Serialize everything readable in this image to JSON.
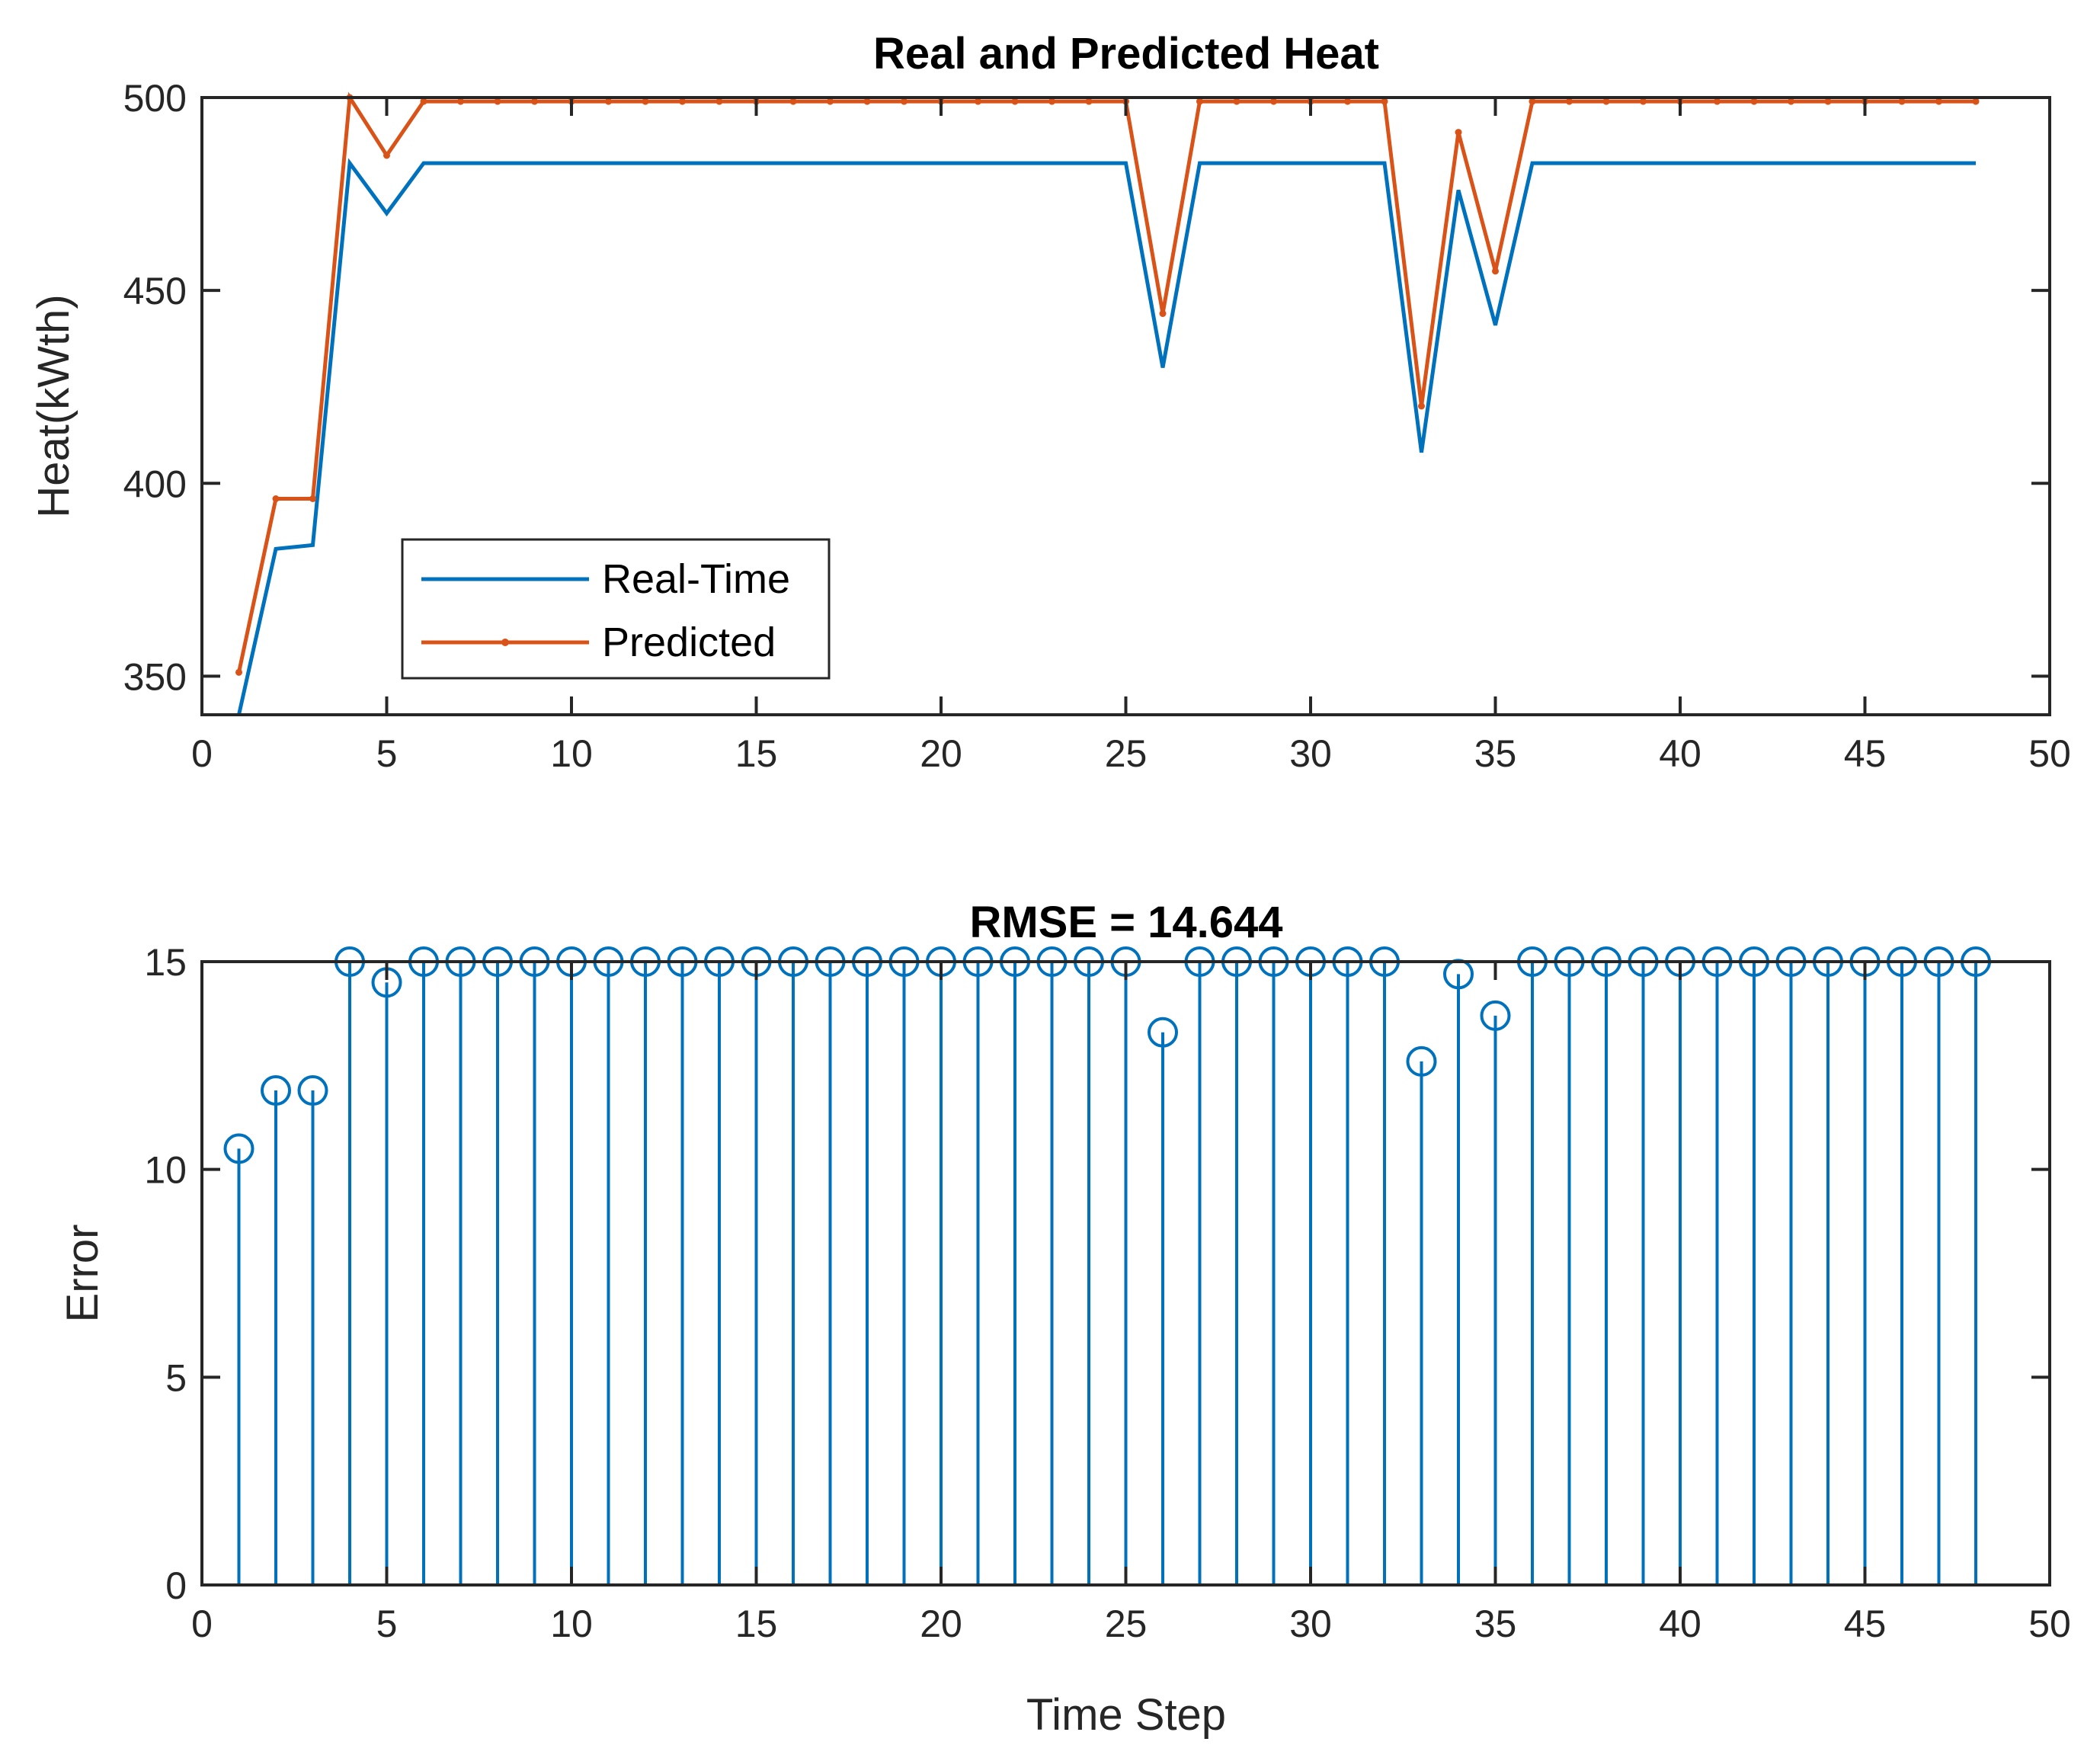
{
  "chart_data": [
    {
      "type": "line",
      "title": "Real and Predicted Heat",
      "xlabel": "",
      "ylabel": "Heat(kWth)",
      "xlim": [
        0,
        50
      ],
      "ylim": [
        340,
        500
      ],
      "x_ticks": [
        0,
        5,
        10,
        15,
        20,
        25,
        30,
        35,
        40,
        45,
        50
      ],
      "y_ticks": [
        350,
        400,
        450,
        500
      ],
      "grid": false,
      "legend_position": "lower-left",
      "x": [
        1,
        2,
        3,
        4,
        5,
        6,
        7,
        8,
        9,
        10,
        11,
        12,
        13,
        14,
        15,
        16,
        17,
        18,
        19,
        20,
        21,
        22,
        23,
        24,
        25,
        26,
        27,
        28,
        29,
        30,
        31,
        32,
        33,
        34,
        35,
        36,
        37,
        38,
        39,
        40,
        41,
        42,
        43,
        44,
        45,
        46,
        47,
        48
      ],
      "series": [
        {
          "name": "Real-Time",
          "color": "#0072BD",
          "marker": "none",
          "values": [
            340,
            383,
            384,
            483,
            470,
            483,
            483,
            483,
            483,
            483,
            483,
            483,
            483,
            483,
            483,
            483,
            483,
            483,
            483,
            483,
            483,
            483,
            483,
            483,
            483,
            430,
            483,
            483,
            483,
            483,
            483,
            483,
            408,
            476,
            441,
            483,
            483,
            483,
            483,
            483,
            483,
            483,
            483,
            483,
            483,
            483,
            483,
            483
          ]
        },
        {
          "name": "Predicted",
          "color": "#D95319",
          "marker": "dot",
          "values": [
            351,
            396,
            396,
            500,
            485,
            499,
            499,
            499,
            499,
            499,
            499,
            499,
            499,
            499,
            499,
            499,
            499,
            499,
            499,
            499,
            499,
            499,
            499,
            499,
            499,
            444,
            499,
            499,
            499,
            499,
            499,
            499,
            420,
            491,
            455,
            499,
            499,
            499,
            499,
            499,
            499,
            499,
            499,
            499,
            499,
            499,
            499,
            499
          ]
        }
      ]
    },
    {
      "type": "stem",
      "title": "RMSE = 14.644",
      "xlabel": "Time Step",
      "ylabel": "Error",
      "xlim": [
        0,
        50
      ],
      "ylim": [
        0,
        15
      ],
      "x_ticks": [
        0,
        5,
        10,
        15,
        20,
        25,
        30,
        35,
        40,
        45,
        50
      ],
      "y_ticks": [
        0,
        5,
        10,
        15
      ],
      "grid": false,
      "x": [
        1,
        2,
        3,
        4,
        5,
        6,
        7,
        8,
        9,
        10,
        11,
        12,
        13,
        14,
        15,
        16,
        17,
        18,
        19,
        20,
        21,
        22,
        23,
        24,
        25,
        26,
        27,
        28,
        29,
        30,
        31,
        32,
        33,
        34,
        35,
        36,
        37,
        38,
        39,
        40,
        41,
        42,
        43,
        44,
        45,
        46,
        47,
        48
      ],
      "series": [
        {
          "color": "#0072BD",
          "marker": "circle",
          "values": [
            10.5,
            11.9,
            11.9,
            15,
            14.5,
            15,
            15,
            15,
            15,
            15,
            15,
            15,
            15,
            15,
            15,
            15,
            15,
            15,
            15,
            15,
            15,
            15,
            15,
            15,
            15,
            13.3,
            15,
            15,
            15,
            15,
            15,
            15,
            12.6,
            14.7,
            13.7,
            15,
            15,
            15,
            15,
            15,
            15,
            15,
            15,
            15,
            15,
            15,
            15,
            15
          ]
        }
      ]
    }
  ]
}
